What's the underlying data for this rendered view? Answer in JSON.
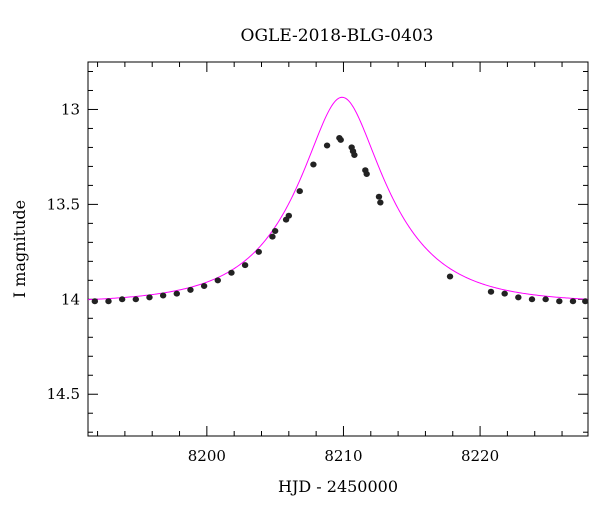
{
  "chart_data": {
    "type": "scatter",
    "title": "OGLE-2018-BLG-0403",
    "xlabel": "HJD - 2450000",
    "ylabel": "I magnitude",
    "xlim": [
      8191.3,
      8227.9
    ],
    "ylim": [
      14.72,
      12.75
    ],
    "y_inverted": true,
    "grid": false,
    "x_major_ticks": [
      8200,
      8210,
      8220
    ],
    "y_major_ticks": [
      13,
      13.5,
      14,
      14.5
    ],
    "x_tick_labels": [
      "8200",
      "8210",
      "8220"
    ],
    "y_tick_labels": [
      "13",
      "13.5",
      "14",
      "14.5"
    ],
    "series": [
      {
        "kind": "points",
        "color": "#222222",
        "x": [
          8191.8,
          8192.8,
          8193.8,
          8194.8,
          8195.8,
          8196.8,
          8197.8,
          8198.8,
          8199.8,
          8200.8,
          8201.8,
          8202.8,
          8203.8,
          8204.8,
          8205.0,
          8205.8,
          8206.0,
          8206.8,
          8207.8,
          8208.8,
          8209.7,
          8209.8,
          8210.6,
          8210.7,
          8210.8,
          8211.6,
          8211.7,
          8212.6,
          8212.7,
          8217.8,
          8220.8,
          8221.8,
          8222.8,
          8223.8,
          8224.8,
          8225.8,
          8226.8,
          8227.7
        ],
        "y": [
          14.01,
          14.01,
          14.0,
          14.0,
          13.99,
          13.98,
          13.97,
          13.95,
          13.93,
          13.9,
          13.86,
          13.82,
          13.75,
          13.67,
          13.64,
          13.58,
          13.56,
          13.43,
          13.29,
          13.19,
          13.15,
          13.16,
          13.2,
          13.22,
          13.24,
          13.32,
          13.34,
          13.46,
          13.49,
          13.88,
          13.96,
          13.97,
          13.99,
          14.0,
          14.0,
          14.01,
          14.01,
          14.01
        ]
      },
      {
        "kind": "model",
        "color": "#ff00ff",
        "model": "PSPL",
        "t0": 8209.9,
        "tE": 6.25,
        "u0": 0.389,
        "baseline_mag": 14.02
      }
    ]
  }
}
